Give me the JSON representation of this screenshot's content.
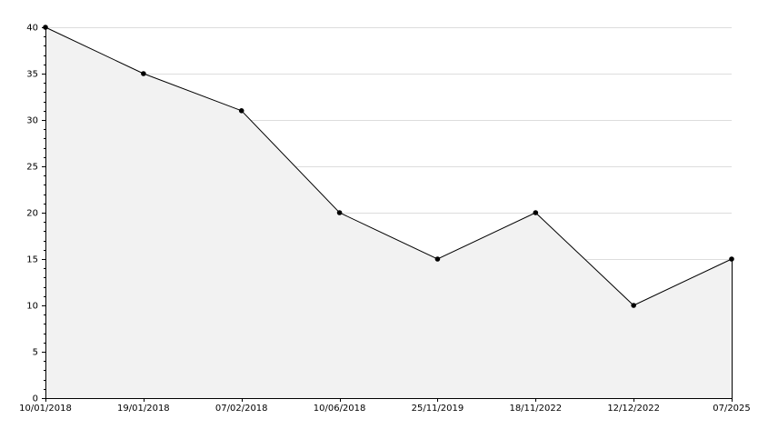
{
  "chart_data": {
    "type": "area",
    "categories": [
      "10/01/2018",
      "19/01/2018",
      "07/02/2018",
      "10/06/2018",
      "25/11/2019",
      "18/11/2022",
      "12/12/2022",
      "07/2025"
    ],
    "values": [
      40,
      35,
      31,
      20,
      15,
      20,
      10,
      15
    ],
    "yticks": [
      "0",
      "5",
      "10",
      "15",
      "20",
      "25",
      "30",
      "35",
      "40"
    ],
    "ylim": [
      0,
      40
    ],
    "grid": true,
    "colors": {
      "fill": "#f2f2f2",
      "line": "#000000",
      "grid": "#dddddd",
      "marker": "#000000"
    }
  }
}
